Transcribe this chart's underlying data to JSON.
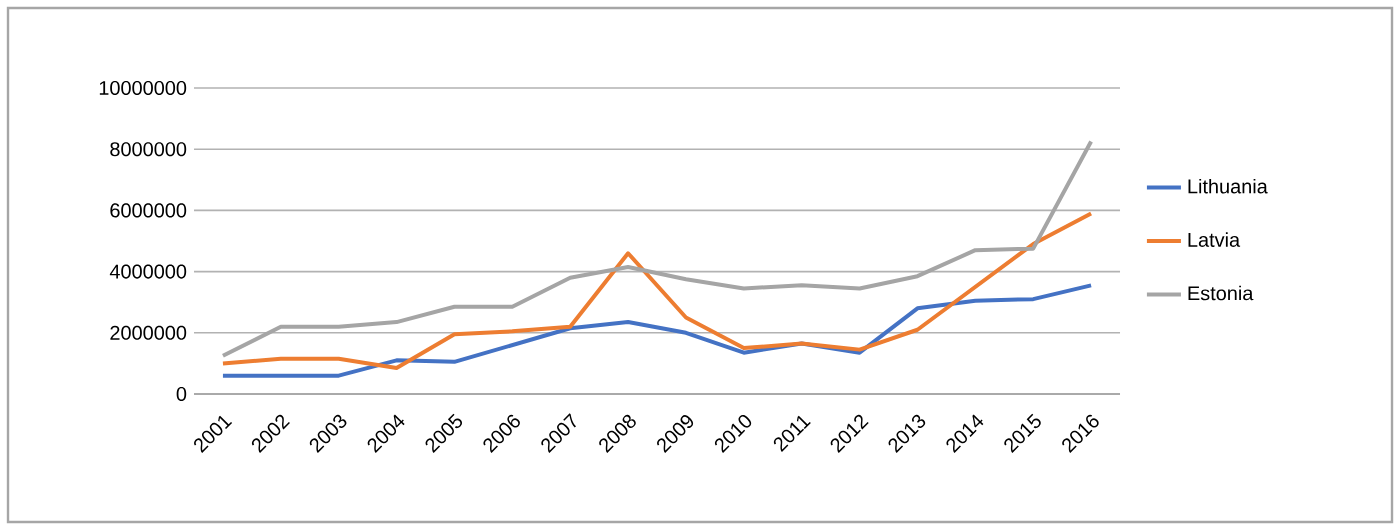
{
  "chart_data": {
    "type": "line",
    "categories": [
      "2001",
      "2002",
      "2003",
      "2004",
      "2005",
      "2006",
      "2007",
      "2008",
      "2009",
      "2010",
      "2011",
      "2012",
      "2013",
      "2014",
      "2015",
      "2016"
    ],
    "series": [
      {
        "name": "Lithuania",
        "color": "#4472c4",
        "values": [
          600000,
          600000,
          600000,
          1100000,
          1050000,
          1600000,
          2150000,
          2350000,
          2000000,
          1350000,
          1650000,
          1350000,
          2800000,
          3050000,
          3100000,
          3550000
        ]
      },
      {
        "name": "Latvia",
        "color": "#ed7d31",
        "values": [
          1000000,
          1150000,
          1150000,
          850000,
          1950000,
          2050000,
          2200000,
          4600000,
          2500000,
          1500000,
          1650000,
          1450000,
          2100000,
          3500000,
          4900000,
          5900000
        ]
      },
      {
        "name": "Estonia",
        "color": "#a5a5a5",
        "values": [
          1250000,
          2200000,
          2200000,
          2350000,
          2850000,
          2850000,
          3800000,
          4150000,
          3750000,
          3450000,
          3550000,
          3450000,
          3850000,
          4700000,
          4750000,
          8250000
        ]
      }
    ],
    "ylim": [
      0,
      10000000
    ],
    "yticks": [
      0,
      2000000,
      4000000,
      6000000,
      8000000,
      10000000
    ],
    "grid": "y",
    "legend": "right",
    "marker": "none",
    "line_style": "solid"
  }
}
